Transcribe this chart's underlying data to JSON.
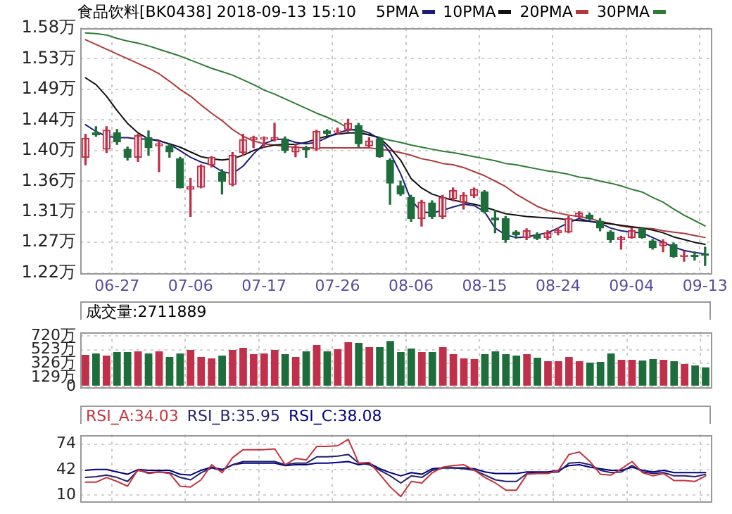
{
  "chart_data": [
    {
      "type": "candlestick",
      "title": "食品饮料[BK0438] 2018-09-13 15:10",
      "legend": "top",
      "grid": true,
      "marker": "none",
      "line_style": "solid",
      "categories": [
        null,
        null,
        null,
        "06-27",
        null,
        null,
        null,
        null,
        null,
        null,
        "07-06",
        null,
        null,
        null,
        null,
        null,
        null,
        "07-17",
        null,
        null,
        null,
        null,
        null,
        null,
        "07-26",
        null,
        null,
        null,
        null,
        null,
        null,
        "08-06",
        null,
        null,
        null,
        null,
        null,
        null,
        "08-15",
        null,
        null,
        null,
        null,
        null,
        null,
        "08-24",
        null,
        null,
        null,
        null,
        null,
        null,
        "09-04",
        null,
        null,
        null,
        null,
        null,
        null,
        "09-13"
      ],
      "ylim": [
        1.22,
        1.58
      ],
      "yticks": [
        {
          "value": 1.22,
          "label": "1.22万"
        },
        {
          "value": 1.265,
          "label": "1.27万"
        },
        {
          "value": 1.31,
          "label": "1.31万"
        },
        {
          "value": 1.355,
          "label": "1.36万"
        },
        {
          "value": 1.4,
          "label": "1.40万"
        },
        {
          "value": 1.445,
          "label": "1.44万"
        },
        {
          "value": 1.49,
          "label": "1.49万"
        },
        {
          "value": 1.535,
          "label": "1.53万"
        },
        {
          "value": 1.58,
          "label": "1.58万"
        }
      ],
      "ohlc": [
        [
          1.39,
          1.424,
          1.379,
          1.418
        ],
        [
          1.426,
          1.435,
          1.421,
          1.423
        ],
        [
          1.402,
          1.435,
          1.397,
          1.43
        ],
        [
          1.426,
          1.431,
          1.409,
          1.413
        ],
        [
          1.402,
          1.405,
          1.386,
          1.39
        ],
        [
          1.39,
          1.424,
          1.384,
          1.422
        ],
        [
          1.419,
          1.429,
          1.393,
          1.404
        ],
        [
          1.407,
          1.414,
          1.369,
          1.41
        ],
        [
          1.407,
          1.41,
          1.39,
          1.398
        ],
        [
          1.388,
          1.39,
          1.345,
          1.345
        ],
        [
          1.343,
          1.359,
          1.303,
          1.347
        ],
        [
          1.346,
          1.379,
          1.345,
          1.377
        ],
        [
          1.379,
          1.391,
          1.376,
          1.39
        ],
        [
          1.368,
          1.372,
          1.336,
          1.355
        ],
        [
          1.35,
          1.397,
          1.348,
          1.393
        ],
        [
          1.397,
          1.424,
          1.393,
          1.416
        ],
        [
          1.416,
          1.421,
          1.404,
          1.419
        ],
        [
          1.417,
          1.42,
          1.405,
          1.419
        ],
        [
          1.416,
          1.44,
          1.414,
          1.419
        ],
        [
          1.417,
          1.42,
          1.397,
          1.4
        ],
        [
          1.398,
          1.409,
          1.391,
          1.405
        ],
        [
          1.404,
          1.406,
          1.39,
          1.401
        ],
        [
          1.402,
          1.43,
          1.4,
          1.428
        ],
        [
          1.429,
          1.431,
          1.422,
          1.425
        ],
        [
          1.427,
          1.433,
          1.424,
          1.429
        ],
        [
          1.431,
          1.446,
          1.428,
          1.44
        ],
        [
          1.437,
          1.44,
          1.405,
          1.41
        ],
        [
          1.407,
          1.419,
          1.404,
          1.414
        ],
        [
          1.417,
          1.419,
          1.39,
          1.391
        ],
        [
          1.386,
          1.388,
          1.321,
          1.352
        ],
        [
          1.348,
          1.355,
          1.334,
          1.336
        ],
        [
          1.331,
          1.334,
          1.296,
          1.3
        ],
        [
          1.3,
          1.327,
          1.289,
          1.324
        ],
        [
          1.323,
          1.326,
          1.3,
          1.303
        ],
        [
          1.303,
          1.334,
          1.3,
          1.331
        ],
        [
          1.329,
          1.345,
          1.326,
          1.341
        ],
        [
          1.324,
          1.338,
          1.314,
          1.334
        ],
        [
          1.334,
          1.345,
          1.331,
          1.343
        ],
        [
          1.339,
          1.341,
          1.308,
          1.31
        ],
        [
          1.301,
          1.312,
          1.279,
          1.298
        ],
        [
          1.3,
          1.303,
          1.265,
          1.269
        ],
        [
          1.28,
          1.282,
          1.271,
          1.276
        ],
        [
          1.272,
          1.285,
          1.269,
          1.282
        ],
        [
          1.276,
          1.279,
          1.269,
          1.271
        ],
        [
          1.272,
          1.282,
          1.269,
          1.279
        ],
        [
          1.279,
          1.286,
          1.276,
          1.282
        ],
        [
          1.28,
          1.303,
          1.279,
          1.3
        ],
        [
          1.303,
          1.31,
          1.301,
          1.308
        ],
        [
          1.305,
          1.308,
          1.298,
          1.3
        ],
        [
          1.296,
          1.3,
          1.282,
          1.286
        ],
        [
          1.28,
          1.282,
          1.265,
          1.269
        ],
        [
          1.269,
          1.274,
          1.255,
          1.272
        ],
        [
          1.272,
          1.286,
          1.271,
          1.282
        ],
        [
          1.285,
          1.287,
          1.271,
          1.272
        ],
        [
          1.267,
          1.269,
          1.255,
          1.257
        ],
        [
          1.26,
          1.269,
          1.251,
          1.265
        ],
        [
          1.262,
          1.264,
          1.243,
          1.244
        ],
        [
          1.244,
          1.251,
          1.237,
          1.246
        ],
        [
          1.246,
          1.251,
          1.239,
          1.244
        ],
        [
          1.248,
          1.258,
          1.231,
          1.246
        ]
      ],
      "colors": [
        "#c0304a",
        "#1e6e3c",
        "#c0304a",
        "#1e6e3c",
        "#1e6e3c",
        "#c0304a",
        "#1e6e3c",
        "#c0304a",
        "#1e6e3c",
        "#1e6e3c",
        "#c0304a",
        "#c0304a",
        "#c0304a",
        "#1e6e3c",
        "#c0304a",
        "#c0304a",
        "#c0304a",
        "#c0304a",
        "#c0304a",
        "#1e6e3c",
        "#c0304a",
        "#1e6e3c",
        "#c0304a",
        "#1e6e3c",
        "#c0304a",
        "#c0304a",
        "#1e6e3c",
        "#c0304a",
        "#1e6e3c",
        "#1e6e3c",
        "#1e6e3c",
        "#1e6e3c",
        "#c0304a",
        "#1e6e3c",
        "#c0304a",
        "#c0304a",
        "#c0304a",
        "#c0304a",
        "#1e6e3c",
        "#1e6e3c",
        "#1e6e3c",
        "#1e6e3c",
        "#c0304a",
        "#1e6e3c",
        "#c0304a",
        "#c0304a",
        "#c0304a",
        "#c0304a",
        "#1e6e3c",
        "#1e6e3c",
        "#1e6e3c",
        "#c0304a",
        "#c0304a",
        "#1e6e3c",
        "#1e6e3c",
        "#c0304a",
        "#1e6e3c",
        "#c0304a",
        "#1e6e3c",
        "#1e6e3c"
      ],
      "series": [
        {
          "name": "5PMA",
          "type": "line",
          "color": "#1c1c7a",
          "values": [
            1.438,
            1.428,
            1.421,
            1.419,
            1.419,
            1.417,
            1.417,
            1.415,
            1.409,
            1.4,
            1.39,
            1.383,
            1.379,
            1.369,
            1.366,
            1.377,
            1.395,
            1.41,
            1.416,
            1.417,
            1.412,
            1.41,
            1.412,
            1.419,
            1.426,
            1.43,
            1.431,
            1.426,
            1.417,
            1.397,
            1.366,
            1.327,
            1.31,
            1.308,
            1.312,
            1.317,
            1.321,
            1.319,
            1.31,
            1.286,
            1.276,
            1.272,
            1.273,
            1.276,
            1.279,
            1.286,
            1.294,
            1.3,
            1.296,
            1.293,
            1.286,
            1.282,
            1.28,
            1.279,
            1.272,
            1.265,
            1.258,
            1.253,
            1.25,
            1.248
          ]
        },
        {
          "name": "10PMA",
          "type": "line",
          "color": "#111111",
          "values": [
            1.507,
            1.497,
            1.48,
            1.459,
            1.44,
            1.426,
            1.417,
            1.414,
            1.41,
            1.405,
            1.398,
            1.391,
            1.388,
            1.386,
            1.388,
            1.393,
            1.4,
            1.405,
            1.408,
            1.409,
            1.409,
            1.412,
            1.417,
            1.421,
            1.424,
            1.426,
            1.426,
            1.423,
            1.419,
            1.404,
            1.386,
            1.359,
            1.345,
            1.336,
            1.331,
            1.327,
            1.324,
            1.321,
            1.317,
            1.312,
            1.307,
            1.305,
            1.303,
            1.302,
            1.301,
            1.3,
            1.298,
            1.297,
            1.296,
            1.294,
            1.292,
            1.29,
            1.288,
            1.286,
            1.283,
            1.279,
            1.273,
            1.269,
            1.265,
            1.262
          ]
        },
        {
          "name": "20PMA",
          "type": "line",
          "color": "#b03a3a",
          "values": [
            1.563,
            1.556,
            1.549,
            1.542,
            1.535,
            1.528,
            1.521,
            1.513,
            1.502,
            1.49,
            1.48,
            1.467,
            1.455,
            1.444,
            1.431,
            1.421,
            1.414,
            1.41,
            1.408,
            1.406,
            1.405,
            1.404,
            1.404,
            1.404,
            1.404,
            1.404,
            1.404,
            1.404,
            1.402,
            1.4,
            1.397,
            1.393,
            1.388,
            1.385,
            1.381,
            1.379,
            1.375,
            1.369,
            1.363,
            1.355,
            1.347,
            1.336,
            1.327,
            1.318,
            1.312,
            1.308,
            1.305,
            1.303,
            1.3,
            1.296,
            1.293,
            1.289,
            1.287,
            1.286,
            1.285,
            1.282,
            1.28,
            1.278,
            1.275,
            1.272
          ]
        },
        {
          "name": "30PMA",
          "type": "line",
          "color": "#2e7d32",
          "values": [
            1.573,
            1.572,
            1.57,
            1.565,
            1.561,
            1.558,
            1.554,
            1.549,
            1.544,
            1.539,
            1.533,
            1.527,
            1.521,
            1.516,
            1.511,
            1.504,
            1.497,
            1.489,
            1.483,
            1.476,
            1.469,
            1.462,
            1.455,
            1.449,
            1.442,
            1.433,
            1.428,
            1.423,
            1.419,
            1.415,
            1.412,
            1.408,
            1.405,
            1.402,
            1.399,
            1.397,
            1.394,
            1.391,
            1.388,
            1.385,
            1.381,
            1.379,
            1.376,
            1.373,
            1.37,
            1.368,
            1.365,
            1.361,
            1.359,
            1.355,
            1.352,
            1.348,
            1.343,
            1.339,
            1.331,
            1.324,
            1.314,
            1.305,
            1.297,
            1.289
          ]
        }
      ]
    },
    {
      "type": "bar",
      "title": "成交量:2711889",
      "grid": true,
      "tick_labels": "y",
      "categories": [
        null,
        null,
        null,
        null,
        null,
        null,
        null,
        null,
        null,
        null,
        null,
        null,
        null,
        null,
        null,
        null,
        null,
        null,
        null,
        null,
        null,
        null,
        null,
        null,
        null,
        null,
        null,
        null,
        null,
        null,
        null,
        null,
        null,
        null,
        null,
        null,
        null,
        null,
        null,
        null,
        null,
        null,
        null,
        null,
        null,
        null,
        null,
        null,
        null,
        null,
        null,
        null,
        null,
        null,
        null,
        null,
        null,
        null,
        null,
        null
      ],
      "ylim": [
        0,
        780
      ],
      "yticks": [
        0,
        {
          "value": 129,
          "label": "129万"
        },
        {
          "value": 326,
          "label": "326万"
        },
        {
          "value": 523,
          "label": "523万"
        },
        {
          "value": 720,
          "label": "720万"
        }
      ],
      "values": [
        450,
        470,
        440,
        490,
        490,
        500,
        470,
        500,
        420,
        470,
        520,
        420,
        400,
        440,
        520,
        550,
        460,
        470,
        520,
        460,
        420,
        500,
        590,
        500,
        530,
        630,
        620,
        560,
        560,
        650,
        490,
        540,
        490,
        490,
        560,
        460,
        400,
        390,
        460,
        500,
        460,
        440,
        460,
        410,
        360,
        360,
        420,
        360,
        340,
        350,
        470,
        380,
        380,
        370,
        390,
        380,
        360,
        320,
        300,
        271
      ],
      "colors": [
        "#c0304a",
        "#1e6e3c",
        "#c0304a",
        "#1e6e3c",
        "#1e6e3c",
        "#c0304a",
        "#1e6e3c",
        "#c0304a",
        "#1e6e3c",
        "#1e6e3c",
        "#c0304a",
        "#c0304a",
        "#c0304a",
        "#1e6e3c",
        "#c0304a",
        "#c0304a",
        "#c0304a",
        "#c0304a",
        "#c0304a",
        "#1e6e3c",
        "#c0304a",
        "#1e6e3c",
        "#c0304a",
        "#1e6e3c",
        "#c0304a",
        "#c0304a",
        "#1e6e3c",
        "#c0304a",
        "#1e6e3c",
        "#1e6e3c",
        "#1e6e3c",
        "#1e6e3c",
        "#c0304a",
        "#1e6e3c",
        "#c0304a",
        "#c0304a",
        "#c0304a",
        "#c0304a",
        "#1e6e3c",
        "#1e6e3c",
        "#1e6e3c",
        "#1e6e3c",
        "#c0304a",
        "#1e6e3c",
        "#c0304a",
        "#c0304a",
        "#c0304a",
        "#c0304a",
        "#1e6e3c",
        "#1e6e3c",
        "#1e6e3c",
        "#c0304a",
        "#c0304a",
        "#1e6e3c",
        "#1e6e3c",
        "#c0304a",
        "#1e6e3c",
        "#c0304a",
        "#1e6e3c",
        "#1e6e3c"
      ]
    },
    {
      "type": "line",
      "legend": "top left",
      "grid": true,
      "tick_labels": "y",
      "marker": "none",
      "line_style": "solid",
      "categories": [
        null,
        null,
        null,
        null,
        null,
        null,
        null,
        null,
        null,
        null,
        null,
        null,
        null,
        null,
        null,
        null,
        null,
        null,
        null,
        null,
        null,
        null,
        null,
        null,
        null,
        null,
        null,
        null,
        null,
        null,
        null,
        null,
        null,
        null,
        null,
        null,
        null,
        null,
        null,
        null,
        null,
        null,
        null,
        null,
        null,
        null,
        null,
        null,
        null,
        null,
        null,
        null,
        null,
        null,
        null,
        null,
        null,
        null,
        null,
        null
      ],
      "ylim": [
        3,
        86
      ],
      "yticks": [
        10,
        42,
        74
      ],
      "series": [
        {
          "name": "RSI_A:34.03",
          "color": "#c8323c",
          "values": [
            26,
            26,
            32,
            27,
            21,
            42,
            37,
            39,
            37,
            21,
            20,
            29,
            48,
            38,
            57,
            67,
            67,
            67,
            68,
            48,
            56,
            54,
            71,
            71,
            72,
            80,
            50,
            51,
            36,
            20,
            8,
            27,
            25,
            38,
            45,
            47,
            48,
            41,
            32,
            25,
            16,
            16,
            36,
            37,
            37,
            41,
            61,
            64,
            52,
            36,
            35,
            43,
            52,
            38,
            34,
            37,
            28,
            28,
            27,
            34.03
          ]
        },
        {
          "name": "RSI_B:35.95",
          "color": "#22226e",
          "values": [
            32,
            33,
            35,
            32,
            27,
            41,
            38,
            39,
            38,
            32,
            29,
            38,
            44,
            41,
            48,
            52,
            52,
            52,
            52,
            48,
            50,
            50,
            58,
            58,
            59,
            61,
            50,
            48,
            41,
            34,
            25,
            34,
            32,
            41,
            44,
            44,
            43,
            41,
            35,
            29,
            27,
            27,
            37,
            38,
            38,
            39,
            50,
            51,
            48,
            41,
            38,
            39,
            47,
            39,
            37,
            38,
            34,
            34,
            33,
            35.95
          ]
        },
        {
          "name": "RSI_C:38.08",
          "color": "#000080",
          "values": [
            41,
            42,
            42,
            39,
            36,
            42,
            41,
            41,
            41,
            36,
            35,
            41,
            45,
            42,
            48,
            50,
            50,
            50,
            50,
            47,
            48,
            48,
            50,
            50,
            51,
            52,
            48,
            50,
            43,
            38,
            34,
            38,
            36,
            43,
            44,
            44,
            44,
            43,
            39,
            37,
            37,
            37,
            39,
            39,
            39,
            41,
            47,
            48,
            45,
            43,
            41,
            41,
            45,
            41,
            39,
            41,
            38,
            38,
            38,
            38.08
          ]
        }
      ]
    }
  ]
}
